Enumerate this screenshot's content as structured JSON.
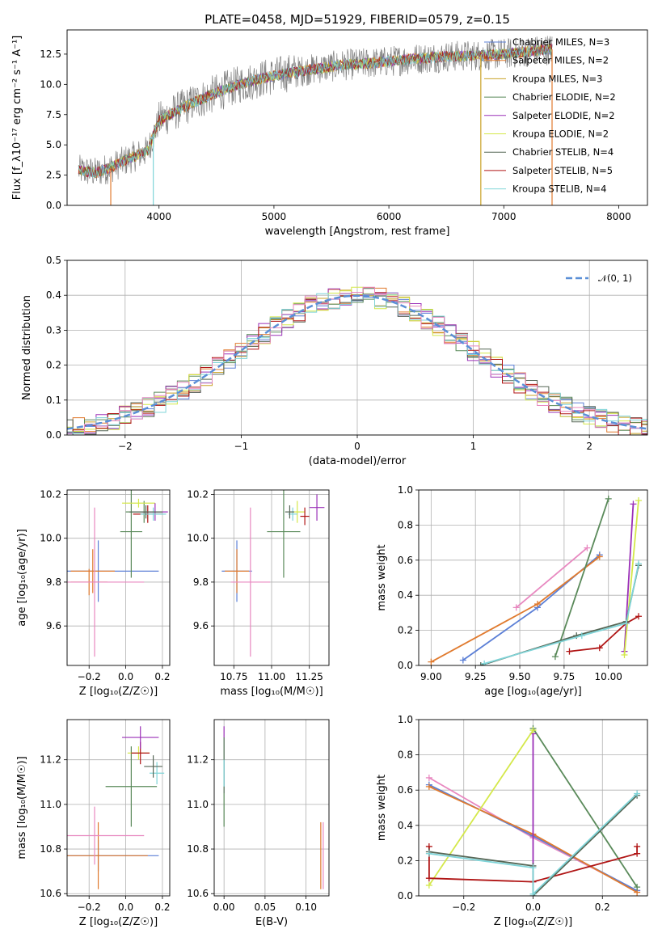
{
  "chart_data": [
    {
      "id": "spectrum",
      "type": "line",
      "title": "PLATE=0458, MJD=51929, FIBERID=0579, z=0.15",
      "xlabel": "wavelength [Angstrom, rest frame]",
      "ylabel": "Flux [f_λ10⁻¹⁷ erg cm⁻² s⁻¹ A⁻¹]",
      "xlim": [
        3200,
        8250
      ],
      "ylim": [
        0,
        14.5
      ],
      "xticks": [
        4000,
        5000,
        6000,
        7000,
        8000
      ],
      "yticks": [
        0.0,
        2.5,
        5.0,
        7.5,
        10.0,
        12.5
      ],
      "continuum": {
        "x": [
          3300,
          3450,
          3600,
          3750,
          3900,
          4000,
          4150,
          4300,
          4500,
          4700,
          4900,
          5100,
          5300,
          5600,
          5900,
          6200,
          6500,
          6800,
          7100,
          7400
        ],
        "y": [
          2.9,
          2.7,
          3.2,
          3.9,
          4.5,
          7.0,
          7.8,
          8.5,
          9.3,
          10.0,
          10.5,
          10.9,
          11.2,
          11.6,
          11.8,
          12.1,
          12.3,
          12.4,
          12.6,
          12.9
        ]
      },
      "legend_position": "top-right",
      "legend": [
        {
          "name": "Chabrier MILES, N_SSP=3",
          "color": "#5b7fd6"
        },
        {
          "name": "Salpeter MILES, N_SSP=2",
          "color": "#e07a2e"
        },
        {
          "name": "Kroupa MILES, N_SSP=3",
          "color": "#c9a227"
        },
        {
          "name": "Chabrier ELODIE, N_SSP=2",
          "color": "#5a8a5a"
        },
        {
          "name": "Salpeter ELODIE, N_SSP=2",
          "color": "#9b30b8"
        },
        {
          "name": "Kroupa ELODIE, N_SSP=2",
          "color": "#d4e84a"
        },
        {
          "name": "Chabrier STELIB, N_SSP=4",
          "color": "#556655"
        },
        {
          "name": "Salpeter STELIB, N_SSP=5",
          "color": "#b01515"
        },
        {
          "name": "Kroupa STELIB, N_SSP=4",
          "color": "#7fd4d8"
        }
      ],
      "data_color": "#808080"
    },
    {
      "id": "residuals",
      "type": "line",
      "xlabel": "(data-model)/error",
      "ylabel": "Normed distribution",
      "xlim": [
        -2.5,
        2.5
      ],
      "ylim": [
        0,
        0.5
      ],
      "xticks": [
        -2,
        -1,
        0,
        1,
        2
      ],
      "yticks": [
        0.0,
        0.1,
        0.2,
        0.3,
        0.4,
        0.5
      ],
      "grid": true,
      "legend": [
        {
          "name": "𝒩(0, 1)",
          "color": "#5b8fd6"
        }
      ],
      "series_colors": [
        "#5b7fd6",
        "#e07a2e",
        "#c9a227",
        "#5a8a5a",
        "#9b30b8",
        "#d4e84a",
        "#556655",
        "#b01515",
        "#7fd4d8",
        "#e888c0"
      ]
    },
    {
      "id": "age-vs-Z",
      "type": "scatter",
      "xlabel": "Z [log₁₀(Z/Z☉)]",
      "ylabel": "age [log₁₀(age/yr)]",
      "xlim": [
        -0.32,
        0.24
      ],
      "ylim": [
        9.42,
        10.22
      ],
      "xticks": [
        -0.2,
        0.0,
        0.2
      ],
      "yticks": [
        9.6,
        9.8,
        10.0,
        10.2
      ],
      "points": [
        {
          "x": -0.15,
          "y": 9.85,
          "xerr": 0.33,
          "yerr": 0.14,
          "color": "#5b7fd6"
        },
        {
          "x": -0.18,
          "y": 9.85,
          "xerr": 0.12,
          "yerr": 0.1,
          "color": "#e07a2e"
        },
        {
          "x": -0.2,
          "y": 9.8,
          "xerr": 0.1,
          "yerr": 0.06,
          "color": "#e07a2e"
        },
        {
          "x": -0.17,
          "y": 9.8,
          "xerr": 0.27,
          "yerr": 0.34,
          "color": "#e888c0"
        },
        {
          "x": 0.03,
          "y": 10.03,
          "xerr": 0.06,
          "yerr": 0.21,
          "color": "#5a8a5a"
        },
        {
          "x": 0.1,
          "y": 10.12,
          "xerr": 0.1,
          "yerr": 0.05,
          "color": "#5a8a5a"
        },
        {
          "x": 0.07,
          "y": 10.16,
          "xerr": 0.09,
          "yerr": 0.02,
          "color": "#d4e84a"
        },
        {
          "x": 0.12,
          "y": 10.11,
          "xerr": 0.08,
          "yerr": 0.04,
          "color": "#b01515"
        },
        {
          "x": 0.16,
          "y": 10.12,
          "xerr": 0.07,
          "yerr": 0.04,
          "color": "#9b30b8"
        },
        {
          "x": 0.15,
          "y": 10.11,
          "xerr": 0.07,
          "yerr": 0.03,
          "color": "#7fd4d8"
        },
        {
          "x": 0.11,
          "y": 10.12,
          "xerr": 0.09,
          "yerr": 0.03,
          "color": "#556655"
        }
      ]
    },
    {
      "id": "age-vs-mass",
      "type": "scatter",
      "xlabel": "mass [log₁₀(M/M☉)]",
      "xlim": [
        10.62,
        11.38
      ],
      "ylim": [
        9.42,
        10.22
      ],
      "xticks": [
        10.75,
        11.0,
        11.25
      ],
      "yticks": [
        9.6,
        9.8,
        10.0,
        10.2
      ],
      "points": [
        {
          "x": 10.77,
          "y": 9.85,
          "xerr": 0.1,
          "yerr": 0.14,
          "color": "#5b7fd6"
        },
        {
          "x": 10.77,
          "y": 9.85,
          "xerr": 0.08,
          "yerr": 0.1,
          "color": "#e07a2e"
        },
        {
          "x": 10.86,
          "y": 9.8,
          "xerr": 0.13,
          "yerr": 0.34,
          "color": "#e888c0"
        },
        {
          "x": 11.08,
          "y": 10.03,
          "xerr": 0.11,
          "yerr": 0.21,
          "color": "#5a8a5a"
        },
        {
          "x": 11.17,
          "y": 10.12,
          "xerr": 0.05,
          "yerr": 0.05,
          "color": "#d4e84a"
        },
        {
          "x": 11.22,
          "y": 10.1,
          "xerr": 0.03,
          "yerr": 0.04,
          "color": "#b01515"
        },
        {
          "x": 11.3,
          "y": 10.14,
          "xerr": 0.05,
          "yerr": 0.06,
          "color": "#9b30b8"
        },
        {
          "x": 11.14,
          "y": 10.11,
          "xerr": 0.03,
          "yerr": 0.03,
          "color": "#7fd4d8"
        },
        {
          "x": 11.12,
          "y": 10.12,
          "xerr": 0.03,
          "yerr": 0.03,
          "color": "#556655"
        }
      ]
    },
    {
      "id": "weight-vs-age",
      "type": "line",
      "xlabel": "age [log₁₀(age/yr)]",
      "ylabel": "mass weight",
      "xlim": [
        8.93,
        10.22
      ],
      "ylim": [
        0,
        1
      ],
      "xticks": [
        9.0,
        9.25,
        9.5,
        9.75,
        10.0
      ],
      "yticks": [
        0.0,
        0.2,
        0.4,
        0.6,
        0.8,
        1.0
      ],
      "grid": true,
      "series": [
        {
          "color": "#e888c0",
          "x": [
            9.48,
            9.88
          ],
          "y": [
            0.33,
            0.67
          ]
        },
        {
          "color": "#5b7fd6",
          "x": [
            9.18,
            9.6,
            9.95
          ],
          "y": [
            0.03,
            0.33,
            0.63
          ]
        },
        {
          "color": "#e07a2e",
          "x": [
            9.0,
            9.6,
            9.95
          ],
          "y": [
            0.02,
            0.35,
            0.62
          ]
        },
        {
          "color": "#5a8a5a",
          "x": [
            9.7,
            10.0
          ],
          "y": [
            0.05,
            0.95
          ]
        },
        {
          "color": "#9b30b8",
          "x": [
            10.09,
            10.14
          ],
          "y": [
            0.08,
            0.92
          ]
        },
        {
          "color": "#d4e84a",
          "x": [
            10.09,
            10.17
          ],
          "y": [
            0.06,
            0.94
          ]
        },
        {
          "color": "#b01515",
          "x": [
            9.78,
            9.95,
            10.1,
            10.17
          ],
          "y": [
            0.08,
            0.1,
            0.24,
            0.28
          ]
        },
        {
          "color": "#556655",
          "x": [
            9.28,
            9.82,
            10.1,
            10.17
          ],
          "y": [
            0.0,
            0.17,
            0.25,
            0.57
          ]
        },
        {
          "color": "#7fd4d8",
          "x": [
            9.3,
            9.85,
            10.1,
            10.17
          ],
          "y": [
            0.01,
            0.17,
            0.24,
            0.58
          ]
        }
      ]
    },
    {
      "id": "mass-vs-Z",
      "type": "scatter",
      "xlabel": "Z [log₁₀(Z/Z☉)]",
      "ylabel": "mass [log₁₀(M/M☉)]",
      "xlim": [
        -0.32,
        0.24
      ],
      "ylim": [
        10.59,
        11.38
      ],
      "xticks": [
        -0.2,
        0.0,
        0.2
      ],
      "yticks": [
        10.6,
        10.8,
        11.0,
        11.2
      ],
      "points": [
        {
          "x": -0.15,
          "y": 10.77,
          "xerr": 0.33,
          "yerr": 0.07,
          "color": "#5b7fd6"
        },
        {
          "x": -0.15,
          "y": 10.77,
          "xerr": 0.27,
          "yerr": 0.15,
          "color": "#e07a2e"
        },
        {
          "x": -0.17,
          "y": 10.86,
          "xerr": 0.27,
          "yerr": 0.13,
          "color": "#e888c0"
        },
        {
          "x": 0.03,
          "y": 11.08,
          "xerr": 0.14,
          "yerr": 0.18,
          "color": "#5a8a5a"
        },
        {
          "x": 0.07,
          "y": 11.23,
          "xerr": 0.06,
          "yerr": 0.03,
          "color": "#d4e84a"
        },
        {
          "x": 0.08,
          "y": 11.23,
          "xerr": 0.05,
          "yerr": 0.05,
          "color": "#b01515"
        },
        {
          "x": 0.08,
          "y": 11.3,
          "xerr": 0.1,
          "yerr": 0.05,
          "color": "#9b30b8"
        },
        {
          "x": 0.17,
          "y": 11.14,
          "xerr": 0.04,
          "yerr": 0.05,
          "color": "#7fd4d8"
        },
        {
          "x": 0.15,
          "y": 11.17,
          "xerr": 0.05,
          "yerr": 0.05,
          "color": "#556655"
        }
      ]
    },
    {
      "id": "mass-vs-EBV",
      "type": "scatter",
      "xlabel": "E(B-V)",
      "xlim": [
        -0.012,
        0.128
      ],
      "ylim": [
        10.59,
        11.38
      ],
      "xticks": [
        0.0,
        0.05,
        0.1
      ],
      "yticks": [
        10.6,
        10.8,
        11.0,
        11.2
      ],
      "points": [
        {
          "x": 0.0,
          "y": 11.2,
          "xerr": 0,
          "yerr": 0.15,
          "color": "#9b30b8"
        },
        {
          "x": 0.0,
          "y": 11.1,
          "xerr": 0,
          "yerr": 0.2,
          "color": "#5a8a5a"
        },
        {
          "x": 0.0,
          "y": 11.14,
          "xerr": 0,
          "yerr": 0.06,
          "color": "#7fd4d8"
        },
        {
          "x": 0.118,
          "y": 10.77,
          "xerr": 0,
          "yerr": 0.15,
          "color": "#e07a2e"
        },
        {
          "x": 0.121,
          "y": 10.77,
          "xerr": 0,
          "yerr": 0.15,
          "color": "#e888c0"
        }
      ]
    },
    {
      "id": "weight-vs-Z",
      "type": "line",
      "xlabel": "Z [log₁₀(Z/Z☉)]",
      "ylabel": "mass weight",
      "xlim": [
        -0.33,
        0.33
      ],
      "ylim": [
        0,
        1
      ],
      "xticks": [
        -0.2,
        0.0,
        0.2
      ],
      "yticks": [
        0.0,
        0.2,
        0.4,
        0.6,
        0.8,
        1.0
      ],
      "grid": true,
      "series": [
        {
          "color": "#e888c0",
          "x": [
            -0.3,
            0.0,
            0.3
          ],
          "y": [
            0.67,
            0.33,
            0.03
          ]
        },
        {
          "color": "#5b7fd6",
          "x": [
            -0.3,
            0.0,
            0.3
          ],
          "y": [
            0.63,
            0.34,
            0.03
          ]
        },
        {
          "color": "#e07a2e",
          "x": [
            -0.3,
            0.0,
            0.3
          ],
          "y": [
            0.62,
            0.35,
            0.02
          ]
        },
        {
          "color": "#5a8a5a",
          "x": [
            0.0,
            0.3
          ],
          "y": [
            0.95,
            0.05
          ]
        },
        {
          "color": "#9b30b8",
          "x": [
            0.0,
            0.0
          ],
          "y": [
            0.08,
            0.92
          ]
        },
        {
          "color": "#d4e84a",
          "x": [
            -0.3,
            0.0
          ],
          "y": [
            0.06,
            0.94
          ]
        },
        {
          "color": "#b01515",
          "x": [
            -0.3,
            -0.3,
            0.0,
            0.3,
            0.3
          ],
          "y": [
            0.28,
            0.1,
            0.08,
            0.24,
            0.28
          ]
        },
        {
          "color": "#556655",
          "x": [
            -0.3,
            0.0,
            0.0,
            0.3
          ],
          "y": [
            0.25,
            0.17,
            0.0,
            0.57
          ]
        },
        {
          "color": "#7fd4d8",
          "x": [
            -0.3,
            0.0,
            0.0,
            0.3
          ],
          "y": [
            0.24,
            0.16,
            0.01,
            0.58
          ]
        }
      ]
    }
  ]
}
